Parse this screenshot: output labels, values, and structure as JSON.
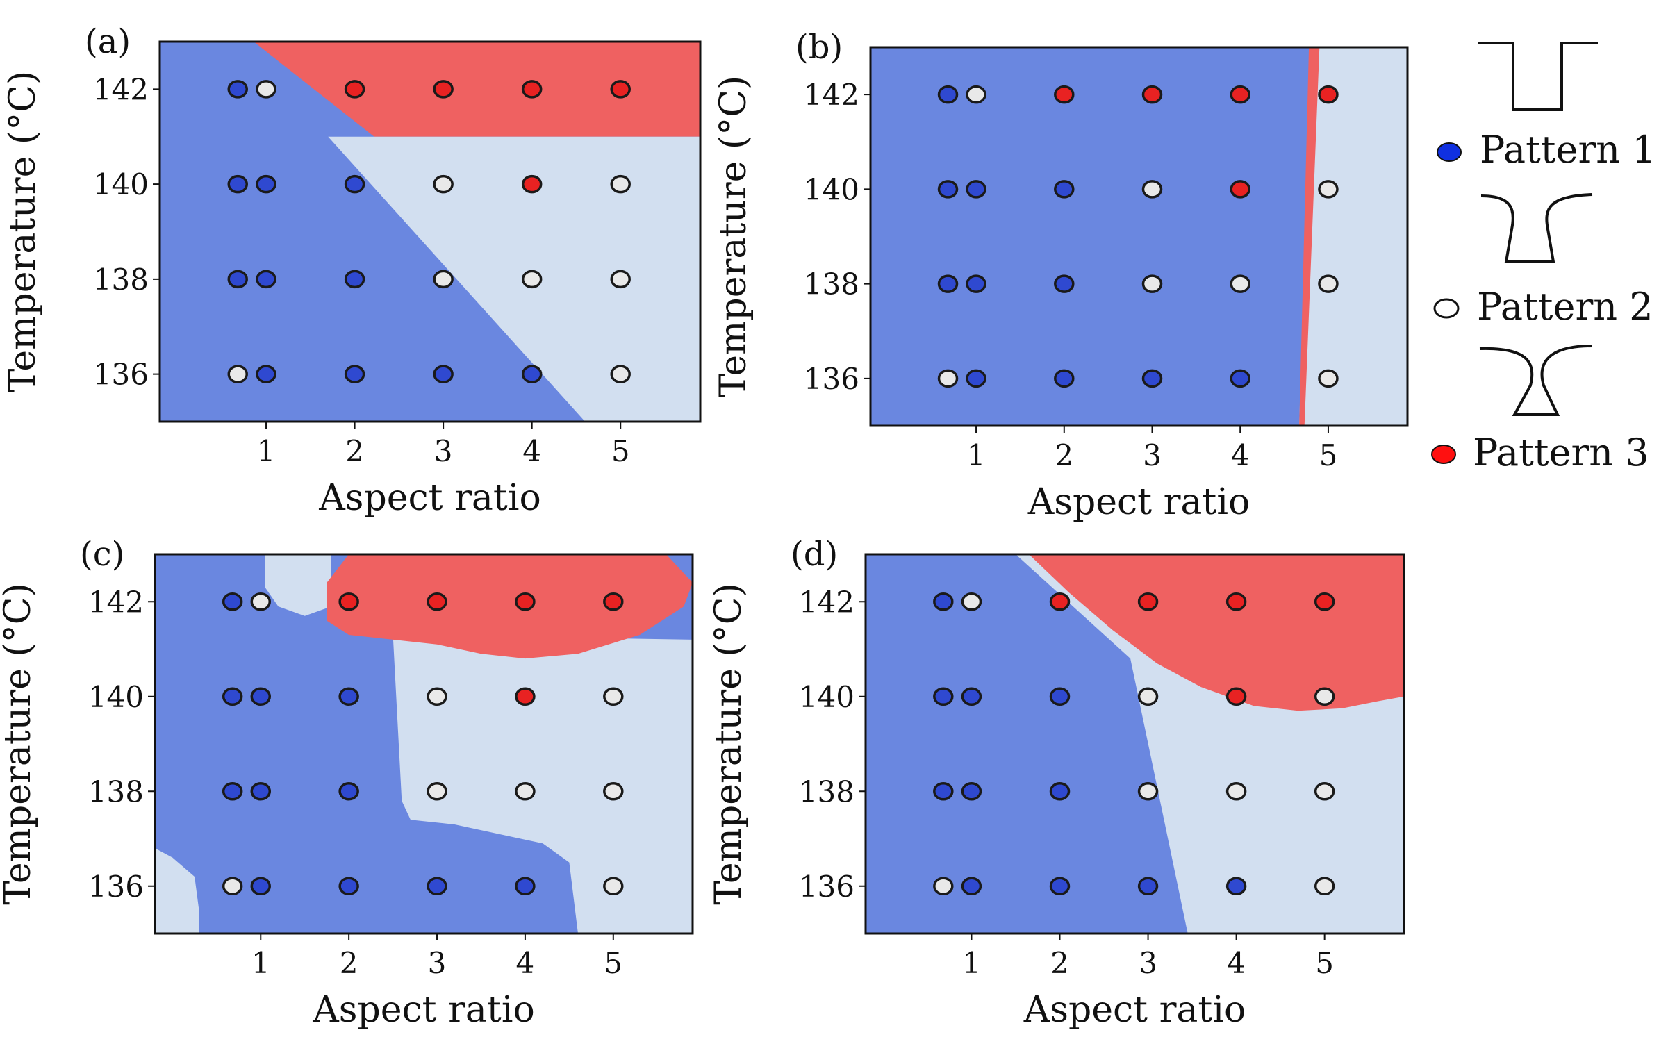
{
  "colors": {
    "pattern1_region": "#6a87e0",
    "pattern2_region": "#d2dff0",
    "pattern3_region": "#ef6161",
    "pattern1_point": "#2f49d0",
    "pattern2_point": "#e9e9e9",
    "pattern3_point": "#e82222",
    "point_edge": "#1a1a1a"
  },
  "legend": {
    "items": [
      {
        "label": "Pattern 1",
        "pattern": 1,
        "icon": "straight-wall-profile-icon"
      },
      {
        "label": "Pattern 2",
        "pattern": 2,
        "icon": "curved-wall-profile-icon"
      },
      {
        "label": "Pattern 3",
        "pattern": 3,
        "icon": "narrow-neck-profile-icon"
      }
    ]
  },
  "chart_data": [
    {
      "type": "scatter",
      "panel_label": "(a)",
      "xlabel": "Aspect ratio",
      "ylabel": "Temperature (°C)",
      "xlim": [
        -0.2,
        5.9
      ],
      "ylim": [
        135,
        143
      ],
      "x_ticks": [
        1,
        2,
        3,
        4,
        5
      ],
      "y_ticks": [
        136,
        138,
        140,
        142
      ],
      "background_pattern": 1,
      "regions": [
        {
          "pattern": 3,
          "polygon": [
            [
              0.86,
              143
            ],
            [
              5.9,
              143
            ],
            [
              5.9,
              141
            ],
            [
              2.22,
              141
            ]
          ]
        },
        {
          "pattern": 2,
          "polygon": [
            [
              1.7,
              141
            ],
            [
              5.9,
              141
            ],
            [
              5.9,
              135
            ],
            [
              4.6,
              135
            ]
          ]
        }
      ],
      "points": [
        {
          "x": 0.68,
          "y": 142,
          "pattern": 1
        },
        {
          "x": 1.0,
          "y": 142,
          "pattern": 2
        },
        {
          "x": 2.0,
          "y": 142,
          "pattern": 3
        },
        {
          "x": 3.0,
          "y": 142,
          "pattern": 3
        },
        {
          "x": 4.0,
          "y": 142,
          "pattern": 3
        },
        {
          "x": 5.0,
          "y": 142,
          "pattern": 3
        },
        {
          "x": 0.68,
          "y": 140,
          "pattern": 1
        },
        {
          "x": 1.0,
          "y": 140,
          "pattern": 1
        },
        {
          "x": 2.0,
          "y": 140,
          "pattern": 1
        },
        {
          "x": 3.0,
          "y": 140,
          "pattern": 2
        },
        {
          "x": 4.0,
          "y": 140,
          "pattern": 3
        },
        {
          "x": 5.0,
          "y": 140,
          "pattern": 2
        },
        {
          "x": 0.68,
          "y": 138,
          "pattern": 1
        },
        {
          "x": 1.0,
          "y": 138,
          "pattern": 1
        },
        {
          "x": 2.0,
          "y": 138,
          "pattern": 1
        },
        {
          "x": 3.0,
          "y": 138,
          "pattern": 2
        },
        {
          "x": 4.0,
          "y": 138,
          "pattern": 2
        },
        {
          "x": 5.0,
          "y": 138,
          "pattern": 2
        },
        {
          "x": 0.68,
          "y": 136,
          "pattern": 2
        },
        {
          "x": 1.0,
          "y": 136,
          "pattern": 1
        },
        {
          "x": 2.0,
          "y": 136,
          "pattern": 1
        },
        {
          "x": 3.0,
          "y": 136,
          "pattern": 1
        },
        {
          "x": 4.0,
          "y": 136,
          "pattern": 1
        },
        {
          "x": 5.0,
          "y": 136,
          "pattern": 2
        }
      ]
    },
    {
      "type": "scatter",
      "panel_label": "(b)",
      "xlabel": "Aspect ratio",
      "ylabel": "Temperature (°C)",
      "xlim": [
        -0.2,
        5.9
      ],
      "ylim": [
        135,
        143
      ],
      "x_ticks": [
        1,
        2,
        3,
        4,
        5
      ],
      "y_ticks": [
        136,
        138,
        140,
        142
      ],
      "background_pattern": 1,
      "regions": [
        {
          "pattern": 2,
          "polygon": [
            [
              4.8,
              143
            ],
            [
              5.9,
              143
            ],
            [
              5.9,
              135
            ],
            [
              4.67,
              135
            ]
          ]
        },
        {
          "pattern": 3,
          "polygon": [
            [
              4.78,
              143
            ],
            [
              4.9,
              143
            ],
            [
              4.73,
              135
            ],
            [
              4.67,
              135
            ]
          ]
        }
      ],
      "points": [
        {
          "x": 0.68,
          "y": 142,
          "pattern": 1
        },
        {
          "x": 1.0,
          "y": 142,
          "pattern": 2
        },
        {
          "x": 2.0,
          "y": 142,
          "pattern": 3
        },
        {
          "x": 3.0,
          "y": 142,
          "pattern": 3
        },
        {
          "x": 4.0,
          "y": 142,
          "pattern": 3
        },
        {
          "x": 5.0,
          "y": 142,
          "pattern": 3
        },
        {
          "x": 0.68,
          "y": 140,
          "pattern": 1
        },
        {
          "x": 1.0,
          "y": 140,
          "pattern": 1
        },
        {
          "x": 2.0,
          "y": 140,
          "pattern": 1
        },
        {
          "x": 3.0,
          "y": 140,
          "pattern": 2
        },
        {
          "x": 4.0,
          "y": 140,
          "pattern": 3
        },
        {
          "x": 5.0,
          "y": 140,
          "pattern": 2
        },
        {
          "x": 0.68,
          "y": 138,
          "pattern": 1
        },
        {
          "x": 1.0,
          "y": 138,
          "pattern": 1
        },
        {
          "x": 2.0,
          "y": 138,
          "pattern": 1
        },
        {
          "x": 3.0,
          "y": 138,
          "pattern": 2
        },
        {
          "x": 4.0,
          "y": 138,
          "pattern": 2
        },
        {
          "x": 5.0,
          "y": 138,
          "pattern": 2
        },
        {
          "x": 0.68,
          "y": 136,
          "pattern": 2
        },
        {
          "x": 1.0,
          "y": 136,
          "pattern": 1
        },
        {
          "x": 2.0,
          "y": 136,
          "pattern": 1
        },
        {
          "x": 3.0,
          "y": 136,
          "pattern": 1
        },
        {
          "x": 4.0,
          "y": 136,
          "pattern": 1
        },
        {
          "x": 5.0,
          "y": 136,
          "pattern": 2
        }
      ]
    },
    {
      "type": "scatter",
      "panel_label": "(c)",
      "xlabel": "Aspect ratio",
      "ylabel": "Temperature (°C)",
      "xlim": [
        -0.2,
        5.9
      ],
      "ylim": [
        135,
        143
      ],
      "x_ticks": [
        1,
        2,
        3,
        4,
        5
      ],
      "y_ticks": [
        136,
        138,
        140,
        142
      ],
      "background_pattern": 1,
      "regions": [
        {
          "pattern": 2,
          "polygon": [
            [
              1.05,
              143
            ],
            [
              1.8,
              143
            ],
            [
              1.8,
              141.9
            ],
            [
              1.5,
              141.7
            ],
            [
              1.2,
              141.9
            ],
            [
              1.05,
              142.3
            ]
          ]
        },
        {
          "pattern": 2,
          "polygon": [
            [
              2.5,
              141.3
            ],
            [
              5.9,
              141.2
            ],
            [
              5.9,
              135
            ],
            [
              4.6,
              135
            ],
            [
              4.5,
              136.5
            ],
            [
              4.2,
              136.9
            ],
            [
              3.2,
              137.3
            ],
            [
              2.7,
              137.4
            ],
            [
              2.6,
              137.8
            ]
          ]
        },
        {
          "pattern": 2,
          "polygon": [
            [
              -0.2,
              136.8
            ],
            [
              0.0,
              136.6
            ],
            [
              0.25,
              136.2
            ],
            [
              0.3,
              135.5
            ],
            [
              0.3,
              135
            ],
            [
              -0.2,
              135
            ]
          ]
        },
        {
          "pattern": 3,
          "polygon": [
            [
              2.0,
              143
            ],
            [
              5.6,
              143
            ],
            [
              5.9,
              142.4
            ],
            [
              5.8,
              141.9
            ],
            [
              5.3,
              141.3
            ],
            [
              4.6,
              140.9
            ],
            [
              4.0,
              140.8
            ],
            [
              3.5,
              140.9
            ],
            [
              3.0,
              141.1
            ],
            [
              2.0,
              141.3
            ],
            [
              1.75,
              141.6
            ],
            [
              1.75,
              142.4
            ]
          ]
        }
      ],
      "points": [
        {
          "x": 0.68,
          "y": 142,
          "pattern": 1
        },
        {
          "x": 1.0,
          "y": 142,
          "pattern": 2
        },
        {
          "x": 2.0,
          "y": 142,
          "pattern": 3
        },
        {
          "x": 3.0,
          "y": 142,
          "pattern": 3
        },
        {
          "x": 4.0,
          "y": 142,
          "pattern": 3
        },
        {
          "x": 5.0,
          "y": 142,
          "pattern": 3
        },
        {
          "x": 0.68,
          "y": 140,
          "pattern": 1
        },
        {
          "x": 1.0,
          "y": 140,
          "pattern": 1
        },
        {
          "x": 2.0,
          "y": 140,
          "pattern": 1
        },
        {
          "x": 3.0,
          "y": 140,
          "pattern": 2
        },
        {
          "x": 4.0,
          "y": 140,
          "pattern": 3
        },
        {
          "x": 5.0,
          "y": 140,
          "pattern": 2
        },
        {
          "x": 0.68,
          "y": 138,
          "pattern": 1
        },
        {
          "x": 1.0,
          "y": 138,
          "pattern": 1
        },
        {
          "x": 2.0,
          "y": 138,
          "pattern": 1
        },
        {
          "x": 3.0,
          "y": 138,
          "pattern": 2
        },
        {
          "x": 4.0,
          "y": 138,
          "pattern": 2
        },
        {
          "x": 5.0,
          "y": 138,
          "pattern": 2
        },
        {
          "x": 0.68,
          "y": 136,
          "pattern": 2
        },
        {
          "x": 1.0,
          "y": 136,
          "pattern": 1
        },
        {
          "x": 2.0,
          "y": 136,
          "pattern": 1
        },
        {
          "x": 3.0,
          "y": 136,
          "pattern": 1
        },
        {
          "x": 4.0,
          "y": 136,
          "pattern": 1
        },
        {
          "x": 5.0,
          "y": 136,
          "pattern": 2
        }
      ]
    },
    {
      "type": "scatter",
      "panel_label": "(d)",
      "xlabel": "Aspect ratio",
      "ylabel": "Temperature (°C)",
      "xlim": [
        -0.2,
        5.9
      ],
      "ylim": [
        135,
        143
      ],
      "x_ticks": [
        1,
        2,
        3,
        4,
        5
      ],
      "y_ticks": [
        136,
        138,
        140,
        142
      ],
      "background_pattern": 1,
      "regions": [
        {
          "pattern": 2,
          "polygon": [
            [
              1.5,
              143
            ],
            [
              5.9,
              143
            ],
            [
              5.9,
              135
            ],
            [
              3.45,
              135
            ],
            [
              2.8,
              140.8
            ]
          ]
        },
        {
          "pattern": 3,
          "polygon": [
            [
              1.65,
              143
            ],
            [
              5.9,
              143
            ],
            [
              5.9,
              140.0
            ],
            [
              5.6,
              139.9
            ],
            [
              5.2,
              139.75
            ],
            [
              4.7,
              139.7
            ],
            [
              4.2,
              139.8
            ],
            [
              3.6,
              140.2
            ],
            [
              3.1,
              140.7
            ],
            [
              2.6,
              141.4
            ],
            [
              2.1,
              142.2
            ]
          ]
        }
      ],
      "points": [
        {
          "x": 0.68,
          "y": 142,
          "pattern": 1
        },
        {
          "x": 1.0,
          "y": 142,
          "pattern": 2
        },
        {
          "x": 2.0,
          "y": 142,
          "pattern": 3
        },
        {
          "x": 3.0,
          "y": 142,
          "pattern": 3
        },
        {
          "x": 4.0,
          "y": 142,
          "pattern": 3
        },
        {
          "x": 5.0,
          "y": 142,
          "pattern": 3
        },
        {
          "x": 0.68,
          "y": 140,
          "pattern": 1
        },
        {
          "x": 1.0,
          "y": 140,
          "pattern": 1
        },
        {
          "x": 2.0,
          "y": 140,
          "pattern": 1
        },
        {
          "x": 3.0,
          "y": 140,
          "pattern": 2
        },
        {
          "x": 4.0,
          "y": 140,
          "pattern": 3
        },
        {
          "x": 5.0,
          "y": 140,
          "pattern": 2
        },
        {
          "x": 0.68,
          "y": 138,
          "pattern": 1
        },
        {
          "x": 1.0,
          "y": 138,
          "pattern": 1
        },
        {
          "x": 2.0,
          "y": 138,
          "pattern": 1
        },
        {
          "x": 3.0,
          "y": 138,
          "pattern": 2
        },
        {
          "x": 4.0,
          "y": 138,
          "pattern": 2
        },
        {
          "x": 5.0,
          "y": 138,
          "pattern": 2
        },
        {
          "x": 0.68,
          "y": 136,
          "pattern": 2
        },
        {
          "x": 1.0,
          "y": 136,
          "pattern": 1
        },
        {
          "x": 2.0,
          "y": 136,
          "pattern": 1
        },
        {
          "x": 3.0,
          "y": 136,
          "pattern": 1
        },
        {
          "x": 4.0,
          "y": 136,
          "pattern": 1
        },
        {
          "x": 5.0,
          "y": 136,
          "pattern": 2
        }
      ]
    }
  ]
}
